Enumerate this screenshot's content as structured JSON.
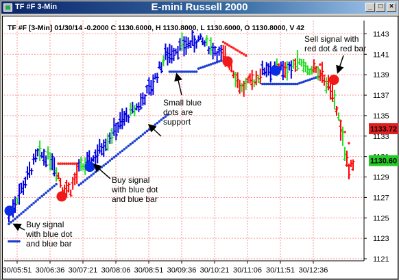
{
  "window": {
    "title": "TF #F 3-Min",
    "chart_title": "E-mini Russell 2000",
    "buttons": {
      "minimize": "_",
      "maximize": "□",
      "close": "×"
    }
  },
  "info_line": "TF #F [3-Min] 01/30/14  -0.2000 C 1130.6000, H 1130.8000, L 1130.6000, O 1130.8000, V 42",
  "price_tags": [
    {
      "label": "1133.72",
      "value": 1133.72,
      "color": "#e02020"
    },
    {
      "label": "1130.60",
      "value": 1130.6,
      "color": "#22cc22"
    }
  ],
  "annotations": [
    {
      "text": [
        "Buy signal",
        "with blue dot",
        "and blue bar"
      ],
      "key": "buy1"
    },
    {
      "text": [
        "Buy signal",
        "with blue dot",
        "and blue bar"
      ],
      "key": "buy2"
    },
    {
      "text": [
        "Small blue",
        "dots are",
        "support"
      ],
      "key": "support"
    },
    {
      "text": [
        "Sell signal with",
        "red dot & red bar"
      ],
      "key": "sell"
    }
  ],
  "colors": {
    "up": "#0000e0",
    "neutral": "#22dd22",
    "down": "#ff0000",
    "support": "#1a3fd0",
    "resistance": "#ff2020",
    "grid": "#ff9090",
    "axis": "#000000",
    "background": "#ffffff"
  },
  "chart_data": {
    "type": "ohlc-bar",
    "title": "E-mini Russell 2000",
    "y_ticks": [
      1143,
      1141,
      1139,
      1137,
      1135,
      1133,
      1131,
      1129,
      1127,
      1125,
      1123,
      1121
    ],
    "x_ticks": [
      "30/05:51",
      "30/06:36",
      "30/07:21",
      "30/08:06",
      "30/08:51",
      "30/09:36",
      "30/10:21",
      "30/11:06",
      "30/11:51",
      "30/12:36"
    ],
    "ylim": [
      1120.8,
      1144.3
    ],
    "last_close": 1130.6,
    "bars_count": 168,
    "series": [
      {
        "name": "up",
        "color": "#0000e0"
      },
      {
        "name": "neutral",
        "color": "#22dd22"
      },
      {
        "name": "down",
        "color": "#ff0000"
      }
    ],
    "signals": [
      {
        "type": "buy",
        "x": "30/05:51",
        "price": 1125.7
      },
      {
        "type": "sell",
        "x": "30/06:36",
        "price": 1127.1
      },
      {
        "type": "buy",
        "x": "30/07:21",
        "price": 1130.0
      },
      {
        "type": "sell",
        "x": "30/10:21",
        "price": 1140.3
      },
      {
        "type": "buy",
        "x": "30/11:06",
        "price": 1139.4
      },
      {
        "type": "sell",
        "x": "30/12:36",
        "price": 1138.5
      }
    ]
  }
}
